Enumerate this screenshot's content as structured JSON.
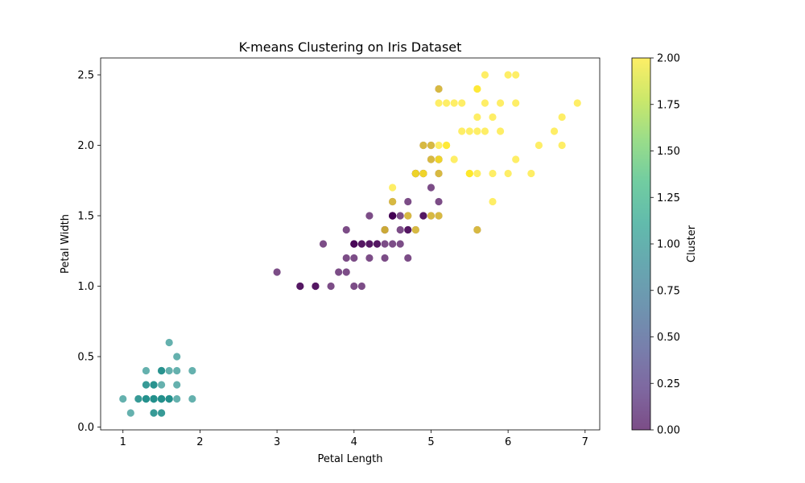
{
  "chart_data": {
    "type": "scatter",
    "title": "K-means Clustering on Iris Dataset",
    "xlabel": "Petal Length",
    "ylabel": "Petal Width",
    "xlim": [
      0.71,
      7.19
    ],
    "ylim": [
      -0.02,
      2.62
    ],
    "xticks": [
      1,
      2,
      3,
      4,
      5,
      6,
      7
    ],
    "yticks": [
      0.0,
      0.5,
      1.0,
      1.5,
      2.0,
      2.5
    ],
    "grid": false,
    "colormap": "viridis",
    "colormap_stops": [
      "#440154",
      "#482878",
      "#3e4989",
      "#31688e",
      "#26828e",
      "#1f9e89",
      "#35b779",
      "#6ece58",
      "#b5de2b",
      "#fde725"
    ],
    "point_alpha": 0.7,
    "colorbar": {
      "label": "Cluster",
      "range": [
        0.0,
        2.0
      ],
      "ticks": [
        0.0,
        0.25,
        0.5,
        0.75,
        1.0,
        1.25,
        1.5,
        1.75,
        2.0
      ],
      "tick_labels": [
        "0.00",
        "0.25",
        "0.50",
        "0.75",
        "1.00",
        "1.25",
        "1.50",
        "1.75",
        "2.00"
      ]
    },
    "series": [
      {
        "cluster": 1,
        "points": [
          [
            1.4,
            0.2
          ],
          [
            1.4,
            0.2
          ],
          [
            1.3,
            0.2
          ],
          [
            1.5,
            0.2
          ],
          [
            1.4,
            0.2
          ],
          [
            1.7,
            0.4
          ],
          [
            1.4,
            0.3
          ],
          [
            1.5,
            0.2
          ],
          [
            1.4,
            0.2
          ],
          [
            1.5,
            0.1
          ],
          [
            1.5,
            0.2
          ],
          [
            1.6,
            0.2
          ],
          [
            1.4,
            0.1
          ],
          [
            1.1,
            0.1
          ],
          [
            1.2,
            0.2
          ],
          [
            1.5,
            0.4
          ],
          [
            1.3,
            0.4
          ],
          [
            1.4,
            0.3
          ],
          [
            1.7,
            0.3
          ],
          [
            1.5,
            0.3
          ],
          [
            1.7,
            0.2
          ],
          [
            1.5,
            0.4
          ],
          [
            1.0,
            0.2
          ],
          [
            1.7,
            0.5
          ],
          [
            1.9,
            0.2
          ],
          [
            1.6,
            0.2
          ],
          [
            1.6,
            0.4
          ],
          [
            1.5,
            0.2
          ],
          [
            1.4,
            0.2
          ],
          [
            1.6,
            0.2
          ],
          [
            1.6,
            0.2
          ],
          [
            1.5,
            0.4
          ],
          [
            1.5,
            0.1
          ],
          [
            1.4,
            0.2
          ],
          [
            1.5,
            0.2
          ],
          [
            1.2,
            0.2
          ],
          [
            1.3,
            0.2
          ],
          [
            1.4,
            0.1
          ],
          [
            1.3,
            0.2
          ],
          [
            1.5,
            0.2
          ],
          [
            1.3,
            0.3
          ],
          [
            1.3,
            0.3
          ],
          [
            1.3,
            0.2
          ],
          [
            1.6,
            0.6
          ],
          [
            1.9,
            0.4
          ],
          [
            1.4,
            0.3
          ],
          [
            1.6,
            0.2
          ],
          [
            1.4,
            0.2
          ],
          [
            1.5,
            0.2
          ],
          [
            1.4,
            0.2
          ]
        ]
      },
      {
        "cluster": 0,
        "points": [
          [
            4.7,
            1.4
          ],
          [
            4.5,
            1.5
          ],
          [
            4.9,
            1.5
          ],
          [
            4.0,
            1.3
          ],
          [
            4.6,
            1.5
          ],
          [
            4.5,
            1.3
          ],
          [
            4.7,
            1.6
          ],
          [
            3.3,
            1.0
          ],
          [
            4.6,
            1.3
          ],
          [
            3.9,
            1.4
          ],
          [
            3.5,
            1.0
          ],
          [
            4.2,
            1.5
          ],
          [
            4.0,
            1.0
          ],
          [
            4.7,
            1.4
          ],
          [
            3.6,
            1.3
          ],
          [
            4.4,
            1.4
          ],
          [
            4.5,
            1.5
          ],
          [
            4.1,
            1.0
          ],
          [
            4.5,
            1.5
          ],
          [
            3.9,
            1.1
          ],
          [
            4.8,
            1.8
          ],
          [
            4.0,
            1.3
          ],
          [
            4.9,
            1.5
          ],
          [
            4.7,
            1.2
          ],
          [
            4.3,
            1.3
          ],
          [
            4.4,
            1.4
          ],
          [
            4.8,
            1.4
          ],
          [
            5.0,
            1.7
          ],
          [
            4.5,
            1.5
          ],
          [
            3.5,
            1.0
          ],
          [
            3.8,
            1.1
          ],
          [
            3.7,
            1.0
          ],
          [
            3.9,
            1.2
          ],
          [
            5.1,
            1.6
          ],
          [
            4.5,
            1.5
          ],
          [
            4.5,
            1.6
          ],
          [
            4.7,
            1.5
          ],
          [
            4.4,
            1.3
          ],
          [
            4.1,
            1.3
          ],
          [
            4.0,
            1.3
          ],
          [
            4.4,
            1.2
          ],
          [
            4.6,
            1.4
          ],
          [
            4.0,
            1.2
          ],
          [
            3.3,
            1.0
          ],
          [
            4.2,
            1.3
          ],
          [
            4.2,
            1.2
          ],
          [
            4.2,
            1.3
          ],
          [
            4.3,
            1.3
          ],
          [
            3.0,
            1.1
          ],
          [
            4.1,
            1.3
          ],
          [
            5.1,
            2.4
          ],
          [
            4.9,
            2.0
          ],
          [
            5.0,
            2.0
          ],
          [
            5.1,
            1.9
          ],
          [
            4.9,
            1.8
          ],
          [
            5.0,
            1.5
          ],
          [
            5.1,
            1.5
          ],
          [
            5.6,
            1.4
          ],
          [
            5.1,
            1.8
          ],
          [
            4.8,
            1.8
          ],
          [
            5.1,
            1.9
          ],
          [
            5.0,
            1.9
          ],
          [
            4.9,
            1.8
          ],
          [
            4.8,
            1.8
          ]
        ]
      },
      {
        "cluster": 2,
        "points": [
          [
            6.0,
            2.5
          ],
          [
            5.1,
            1.9
          ],
          [
            5.9,
            2.1
          ],
          [
            5.6,
            1.8
          ],
          [
            5.8,
            2.2
          ],
          [
            6.6,
            2.1
          ],
          [
            4.5,
            1.7
          ],
          [
            6.3,
            1.8
          ],
          [
            5.8,
            1.8
          ],
          [
            6.1,
            2.5
          ],
          [
            5.1,
            2.0
          ],
          [
            5.3,
            1.9
          ],
          [
            5.5,
            2.1
          ],
          [
            5.0,
            2.0
          ],
          [
            5.1,
            2.4
          ],
          [
            5.3,
            2.3
          ],
          [
            5.5,
            1.8
          ],
          [
            6.7,
            2.2
          ],
          [
            6.9,
            2.3
          ],
          [
            5.0,
            1.5
          ],
          [
            5.7,
            2.3
          ],
          [
            4.9,
            2.0
          ],
          [
            6.7,
            2.0
          ],
          [
            4.9,
            1.8
          ],
          [
            5.7,
            2.1
          ],
          [
            6.0,
            1.8
          ],
          [
            4.8,
            1.8
          ],
          [
            4.9,
            1.8
          ],
          [
            5.6,
            2.1
          ],
          [
            5.8,
            1.6
          ],
          [
            6.1,
            1.9
          ],
          [
            6.4,
            2.0
          ],
          [
            5.6,
            2.2
          ],
          [
            5.1,
            1.5
          ],
          [
            5.6,
            1.4
          ],
          [
            6.1,
            2.3
          ],
          [
            5.6,
            2.4
          ],
          [
            5.5,
            1.8
          ],
          [
            4.8,
            1.8
          ],
          [
            5.4,
            2.1
          ],
          [
            5.6,
            2.4
          ],
          [
            5.1,
            2.3
          ],
          [
            5.1,
            1.9
          ],
          [
            5.9,
            2.3
          ],
          [
            5.7,
            2.5
          ],
          [
            5.2,
            2.3
          ],
          [
            5.0,
            1.9
          ],
          [
            5.2,
            2.0
          ],
          [
            5.4,
            2.3
          ],
          [
            5.1,
            1.8
          ],
          [
            4.5,
            1.6
          ],
          [
            4.7,
            1.5
          ],
          [
            4.4,
            1.4
          ],
          [
            4.8,
            1.4
          ],
          [
            5.2,
            2.0
          ],
          [
            5.5,
            1.8
          ]
        ]
      }
    ]
  }
}
